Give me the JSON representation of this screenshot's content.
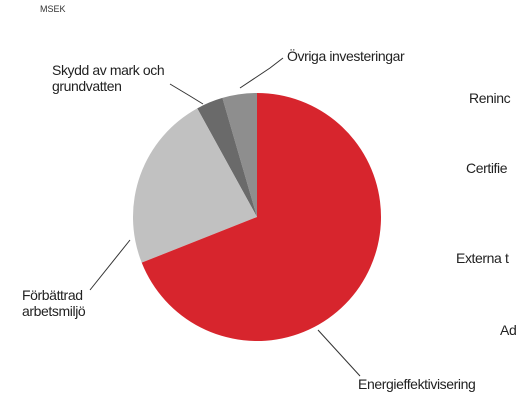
{
  "chart_data": {
    "type": "pie",
    "subtitle": "MSEK",
    "categories": [
      "Energieffektivisering",
      "Förbättrad arbetsmiljö",
      "Skydd av mark och grundvatten",
      "Övriga investeringar"
    ],
    "values": [
      69,
      23,
      3.5,
      4.5
    ],
    "colors": [
      "#d7252d",
      "#c1c1c1",
      "#6a6a6a",
      "#8e8e8e"
    ]
  },
  "partial_labels": [
    "Reninc",
    "Certifie",
    "Externa t",
    "Ad"
  ]
}
